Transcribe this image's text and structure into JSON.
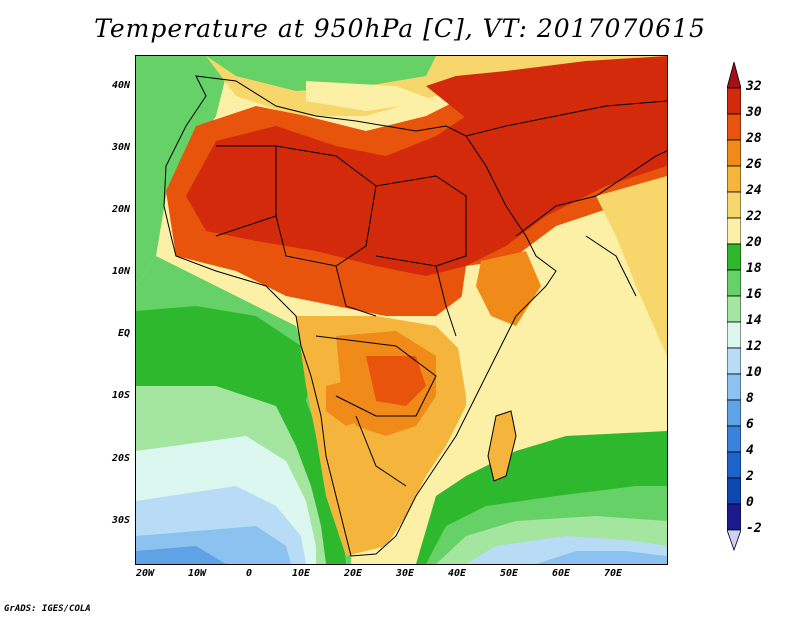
{
  "title": "Temperature at 950hPa [C], VT: 2017070615",
  "credit": "GrADS: IGES/COLA",
  "map": {
    "lat_labels": [
      "40N",
      "30N",
      "20N",
      "10N",
      "EQ",
      "10S",
      "20S",
      "30S"
    ],
    "lon_labels": [
      "20W",
      "10W",
      "0",
      "10E",
      "20E",
      "30E",
      "40E",
      "50E",
      "60E",
      "70E"
    ],
    "lon_range": [
      -22,
      81
    ],
    "lat_range": [
      -36,
      44.5
    ]
  },
  "colorbar": {
    "labels": [
      "32",
      "30",
      "28",
      "26",
      "24",
      "22",
      "20",
      "18",
      "16",
      "14",
      "12",
      "10",
      "8",
      "6",
      "4",
      "2",
      "0",
      "-2"
    ],
    "colors": [
      "#a50f15",
      "#d42a0c",
      "#e8540c",
      "#f08a18",
      "#f5b53c",
      "#f7d66b",
      "#fbf0a6",
      "#2eb82e",
      "#66d166",
      "#a4e6a0",
      "#dcf7f0",
      "#b8dcf5",
      "#8cc2f0",
      "#5fa2e6",
      "#3b82dc",
      "#1f64cc",
      "#0e46b2",
      "#1a1a8c",
      "#d0d0f7"
    ]
  }
}
